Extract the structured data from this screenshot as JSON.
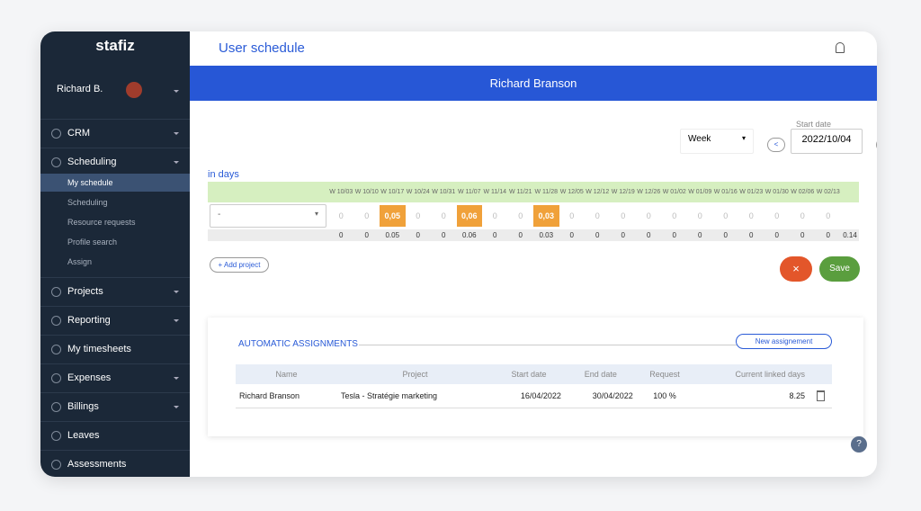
{
  "sidebar": {
    "logo": "stafiz",
    "user": "Richard B.",
    "menu": [
      {
        "label": "CRM"
      },
      {
        "label": "Scheduling",
        "children": [
          "My schedule",
          "Scheduling",
          "Resource requests",
          "Profile search",
          "Assign"
        ]
      },
      {
        "label": "Projects"
      },
      {
        "label": "Reporting"
      },
      {
        "label": "My timesheets"
      },
      {
        "label": "Expenses"
      },
      {
        "label": "Billings"
      },
      {
        "label": "Leaves"
      },
      {
        "label": "Assessments"
      }
    ]
  },
  "header": {
    "title": "User schedule"
  },
  "banner": {
    "name": "Richard Branson"
  },
  "controls": {
    "period": "Week",
    "start_date_label": "Start date",
    "start_date": "2022/10/04",
    "prev": "<",
    "next": ">"
  },
  "schedule": {
    "unit": "in days",
    "weeks": [
      "W 10/03",
      "W 10/10",
      "W 10/17",
      "W 10/24",
      "W 10/31",
      "W 11/07",
      "W 11/14",
      "W 11/21",
      "W 11/28",
      "W 12/05",
      "W 12/12",
      "W 12/19",
      "W 12/26",
      "W 01/02",
      "W 01/09",
      "W 01/16",
      "W 01/23",
      "W 01/30",
      "W 02/06",
      "W 02/13"
    ],
    "project": "-",
    "cells": [
      "0",
      "0",
      "0,05",
      "0",
      "0",
      "0,06",
      "0",
      "0",
      "0,03",
      "0",
      "0",
      "0",
      "0",
      "0",
      "0",
      "0",
      "0",
      "0",
      "0",
      "0"
    ],
    "totals": [
      0,
      0,
      0.05,
      0,
      0,
      0.06,
      0,
      0,
      0.03,
      0,
      0,
      0,
      0,
      0,
      0,
      0,
      0,
      0,
      0,
      0
    ],
    "grand_total": 0.14,
    "add_project": "+ Add project",
    "cancel": "×",
    "save": "Save"
  },
  "assignments": {
    "title": "AUTOMATIC ASSIGNMENTS",
    "new_button": "New assignement",
    "columns": [
      "Name",
      "Project",
      "Start date",
      "End date",
      "Request",
      "Current linked days"
    ],
    "rows": [
      [
        "Richard Branson",
        "Tesla - Stratégie marketing",
        "16/04/2022",
        "30/04/2022",
        "100 %",
        "8.25"
      ]
    ]
  },
  "help": "?"
}
